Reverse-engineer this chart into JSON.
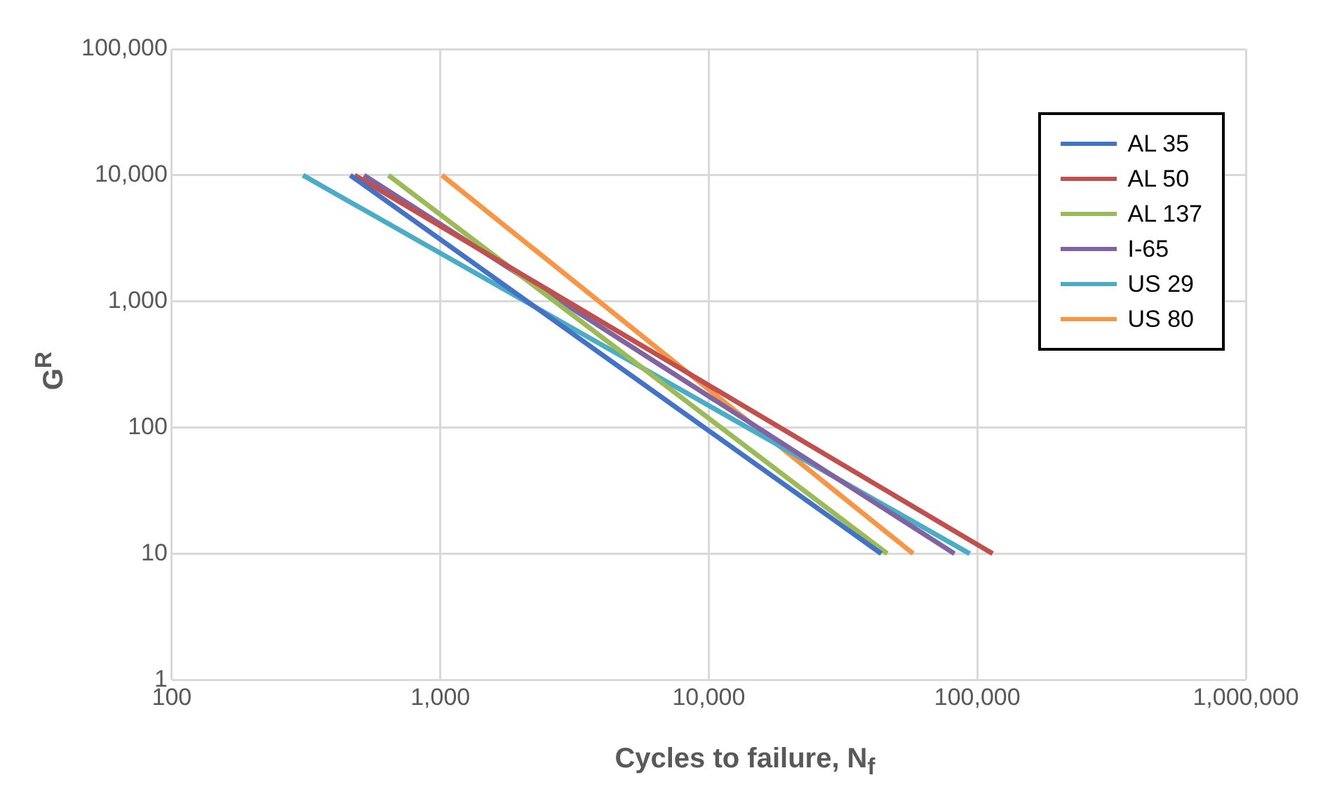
{
  "chart_data": {
    "type": "line",
    "xlabel": "Cycles to failure, N$_{f}$",
    "ylabel": "G$^{R}$",
    "log": "xy",
    "xlim": [
      100,
      1000000
    ],
    "xticks": [
      {
        "value": 100,
        "label": "100"
      },
      {
        "value": 1000,
        "label": "1,000"
      },
      {
        "value": 10000,
        "label": "10,000"
      },
      {
        "value": 100000,
        "label": "100,000"
      },
      {
        "value": 1000000,
        "label": "1,000,000"
      }
    ],
    "ylim": [
      1,
      100000
    ],
    "yticks": [
      {
        "value": 1,
        "label": "1"
      },
      {
        "value": 10,
        "label": "10"
      },
      {
        "value": 100,
        "label": "100"
      },
      {
        "value": 1000,
        "label": "1,000"
      },
      {
        "value": 10000,
        "label": "10,000"
      },
      {
        "value": 100000,
        "label": "100,000"
      }
    ],
    "grid": true,
    "legend": "top right",
    "marker": "none",
    "line_style": "solid",
    "series": [
      {
        "name": "AL 35",
        "color": "#4472c4",
        "x": [
          462,
          43900
        ],
        "values": [
          10000,
          10
        ]
      },
      {
        "name": "AL 50",
        "color": "#c0504d",
        "x": [
          480,
          114000
        ],
        "values": [
          10000,
          10
        ]
      },
      {
        "name": "AL 137",
        "color": "#9bbb59",
        "x": [
          641,
          46200
        ],
        "values": [
          10000,
          10
        ]
      },
      {
        "name": "I-65",
        "color": "#8064a2",
        "x": [
          520,
          82200
        ],
        "values": [
          10000,
          10
        ]
      },
      {
        "name": "US 29",
        "color": "#4bacc6",
        "x": [
          308,
          93700
        ],
        "values": [
          10000,
          10
        ]
      },
      {
        "name": "US 80",
        "color": "#f79646",
        "x": [
          1014,
          57700
        ],
        "values": [
          10000,
          10
        ]
      }
    ]
  }
}
